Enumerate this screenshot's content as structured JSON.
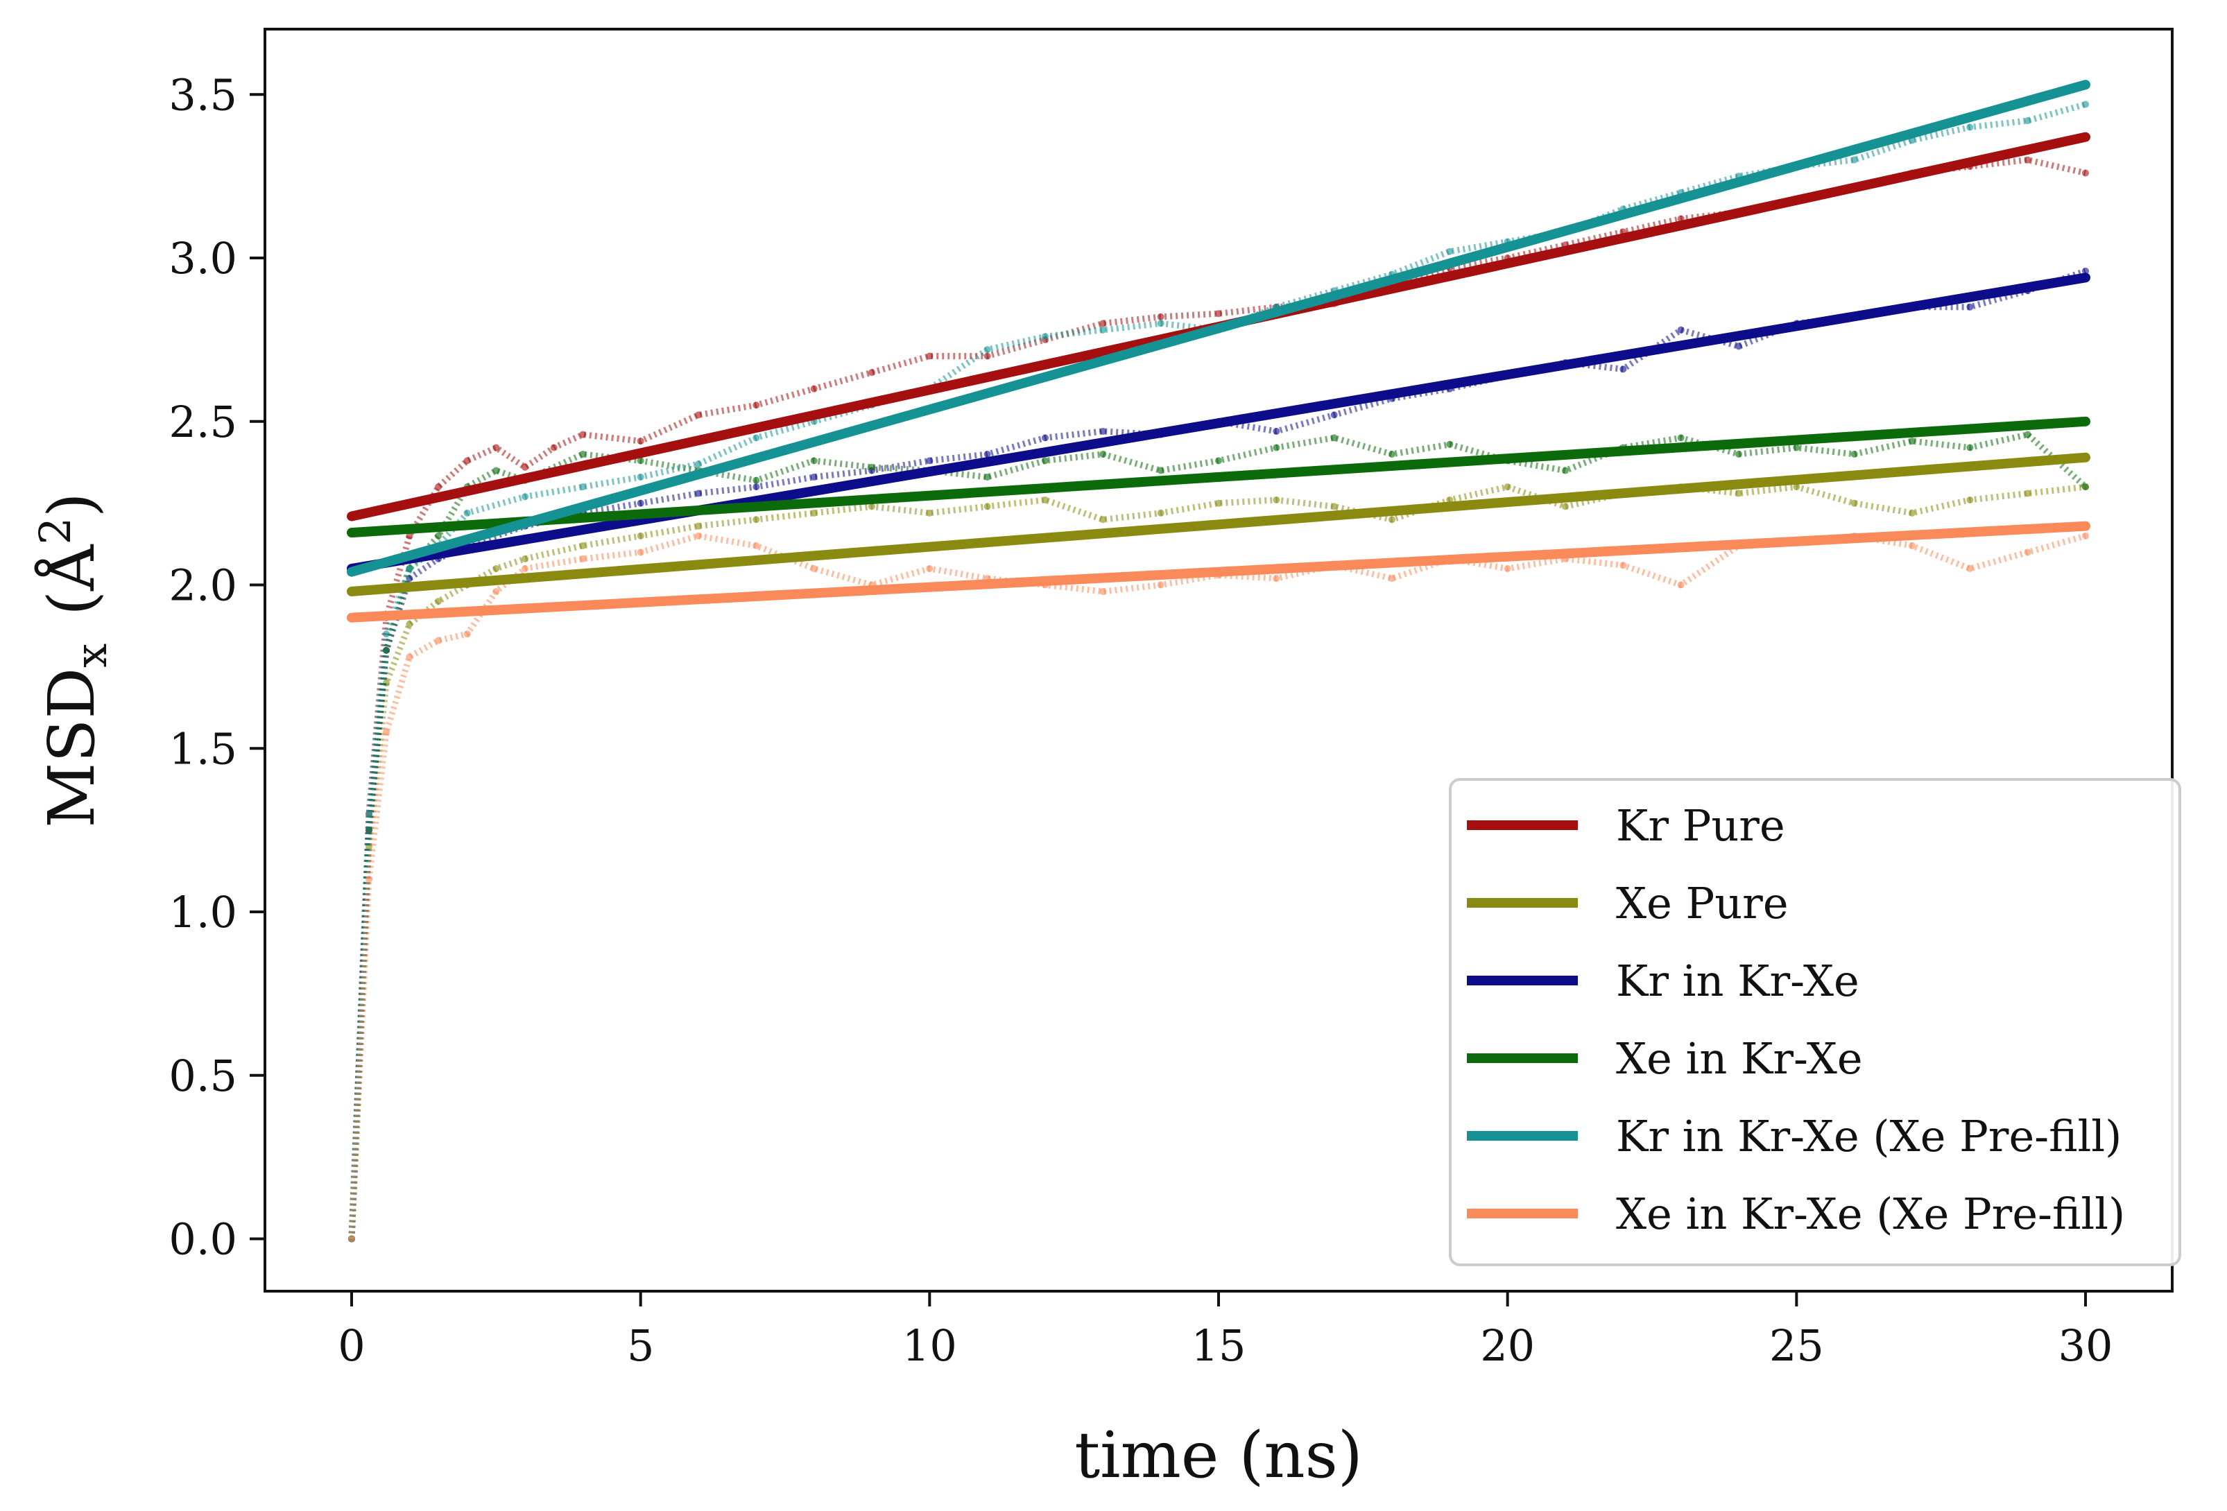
{
  "chart_data": {
    "type": "line",
    "title": "",
    "xlabel": "time (ns)",
    "ylabel": {
      "main": "MSD",
      "sub": "x",
      "unit_open": "(Å",
      "unit_sup": "2",
      "unit_close": ")"
    },
    "xlim": [
      -1.5,
      31.5
    ],
    "ylim": [
      -0.16,
      3.7
    ],
    "xticks": [
      0,
      5,
      10,
      15,
      20,
      25,
      30
    ],
    "yticks": [
      0.0,
      0.5,
      1.0,
      1.5,
      2.0,
      2.5,
      3.0,
      3.5
    ],
    "xtick_labels": [
      "0",
      "5",
      "10",
      "15",
      "20",
      "25",
      "30"
    ],
    "ytick_labels": [
      "0.0",
      "0.5",
      "1.0",
      "1.5",
      "2.0",
      "2.5",
      "3.0",
      "3.5"
    ],
    "grid": false,
    "legend_position": "bottom-right",
    "series": [
      {
        "name": "Kr Pure",
        "color": "#a50f0f",
        "fit": [
          [
            0,
            2.21
          ],
          [
            30,
            3.37
          ]
        ],
        "raw": [
          [
            0,
            0.0
          ],
          [
            0.3,
            1.3
          ],
          [
            0.6,
            1.9
          ],
          [
            1.0,
            2.15
          ],
          [
            1.5,
            2.3
          ],
          [
            2,
            2.38
          ],
          [
            2.5,
            2.42
          ],
          [
            3,
            2.36
          ],
          [
            3.5,
            2.42
          ],
          [
            4,
            2.46
          ],
          [
            5,
            2.44
          ],
          [
            6,
            2.52
          ],
          [
            7,
            2.55
          ],
          [
            8,
            2.6
          ],
          [
            9,
            2.65
          ],
          [
            10,
            2.7
          ],
          [
            11,
            2.7
          ],
          [
            12,
            2.75
          ],
          [
            13,
            2.8
          ],
          [
            14,
            2.82
          ],
          [
            15,
            2.83
          ],
          [
            16,
            2.85
          ],
          [
            17,
            2.86
          ],
          [
            18,
            2.92
          ],
          [
            19,
            2.97
          ],
          [
            20,
            3.0
          ],
          [
            21,
            3.04
          ],
          [
            22,
            3.08
          ],
          [
            23,
            3.12
          ],
          [
            24,
            3.14
          ],
          [
            25,
            3.18
          ],
          [
            26,
            3.22
          ],
          [
            27,
            3.26
          ],
          [
            28,
            3.28
          ],
          [
            29,
            3.3
          ],
          [
            30,
            3.26
          ]
        ]
      },
      {
        "name": "Xe Pure",
        "color": "#8b8a10",
        "fit": [
          [
            0,
            1.98
          ],
          [
            30,
            2.39
          ]
        ],
        "raw": [
          [
            0,
            0.0
          ],
          [
            0.3,
            1.2
          ],
          [
            0.6,
            1.7
          ],
          [
            1.0,
            1.88
          ],
          [
            1.5,
            1.95
          ],
          [
            2,
            2.0
          ],
          [
            2.5,
            2.05
          ],
          [
            3,
            2.08
          ],
          [
            4,
            2.12
          ],
          [
            5,
            2.15
          ],
          [
            6,
            2.18
          ],
          [
            7,
            2.2
          ],
          [
            8,
            2.22
          ],
          [
            9,
            2.24
          ],
          [
            10,
            2.22
          ],
          [
            11,
            2.24
          ],
          [
            12,
            2.26
          ],
          [
            13,
            2.2
          ],
          [
            14,
            2.22
          ],
          [
            15,
            2.25
          ],
          [
            16,
            2.26
          ],
          [
            17,
            2.24
          ],
          [
            18,
            2.2
          ],
          [
            19,
            2.26
          ],
          [
            20,
            2.3
          ],
          [
            21,
            2.24
          ],
          [
            22,
            2.28
          ],
          [
            23,
            2.3
          ],
          [
            24,
            2.28
          ],
          [
            25,
            2.3
          ],
          [
            26,
            2.25
          ],
          [
            27,
            2.22
          ],
          [
            28,
            2.26
          ],
          [
            29,
            2.28
          ],
          [
            30,
            2.3
          ]
        ]
      },
      {
        "name": "Kr in Kr-Xe",
        "color": "#0d0d8c",
        "fit": [
          [
            0,
            2.05
          ],
          [
            30,
            2.94
          ]
        ],
        "raw": [
          [
            0,
            0.0
          ],
          [
            0.3,
            1.25
          ],
          [
            0.6,
            1.8
          ],
          [
            1.0,
            2.02
          ],
          [
            1.5,
            2.08
          ],
          [
            2,
            2.12
          ],
          [
            3,
            2.18
          ],
          [
            4,
            2.22
          ],
          [
            5,
            2.25
          ],
          [
            6,
            2.28
          ],
          [
            7,
            2.3
          ],
          [
            8,
            2.33
          ],
          [
            9,
            2.35
          ],
          [
            10,
            2.38
          ],
          [
            11,
            2.4
          ],
          [
            12,
            2.45
          ],
          [
            13,
            2.47
          ],
          [
            14,
            2.46
          ],
          [
            15,
            2.5
          ],
          [
            16,
            2.47
          ],
          [
            17,
            2.52
          ],
          [
            18,
            2.57
          ],
          [
            19,
            2.6
          ],
          [
            20,
            2.64
          ],
          [
            21,
            2.68
          ],
          [
            22,
            2.66
          ],
          [
            23,
            2.78
          ],
          [
            24,
            2.73
          ],
          [
            25,
            2.8
          ],
          [
            26,
            2.82
          ],
          [
            27,
            2.85
          ],
          [
            28,
            2.85
          ],
          [
            29,
            2.9
          ],
          [
            30,
            2.96
          ]
        ]
      },
      {
        "name": "Xe in Kr-Xe",
        "color": "#0b6b0b",
        "fit": [
          [
            0,
            2.16
          ],
          [
            30,
            2.5
          ]
        ],
        "raw": [
          [
            0,
            0.0
          ],
          [
            0.3,
            1.25
          ],
          [
            0.6,
            1.8
          ],
          [
            1.0,
            2.05
          ],
          [
            1.5,
            2.15
          ],
          [
            2,
            2.3
          ],
          [
            2.5,
            2.35
          ],
          [
            3,
            2.32
          ],
          [
            4,
            2.4
          ],
          [
            5,
            2.38
          ],
          [
            6,
            2.35
          ],
          [
            7,
            2.32
          ],
          [
            8,
            2.38
          ],
          [
            9,
            2.36
          ],
          [
            10,
            2.35
          ],
          [
            11,
            2.33
          ],
          [
            12,
            2.38
          ],
          [
            13,
            2.4
          ],
          [
            14,
            2.35
          ],
          [
            15,
            2.38
          ],
          [
            16,
            2.42
          ],
          [
            17,
            2.45
          ],
          [
            18,
            2.4
          ],
          [
            19,
            2.43
          ],
          [
            20,
            2.38
          ],
          [
            21,
            2.35
          ],
          [
            22,
            2.42
          ],
          [
            23,
            2.45
          ],
          [
            24,
            2.4
          ],
          [
            25,
            2.42
          ],
          [
            26,
            2.4
          ],
          [
            27,
            2.44
          ],
          [
            28,
            2.42
          ],
          [
            29,
            2.46
          ],
          [
            30,
            2.3
          ]
        ]
      },
      {
        "name": "Kr in Kr-Xe (Xe Pre-fill)",
        "color": "#159294",
        "fit": [
          [
            0,
            2.04
          ],
          [
            30,
            3.53
          ]
        ],
        "raw": [
          [
            0,
            0.0
          ],
          [
            0.3,
            1.3
          ],
          [
            0.6,
            1.85
          ],
          [
            1.0,
            2.05
          ],
          [
            1.5,
            2.12
          ],
          [
            2,
            2.22
          ],
          [
            3,
            2.27
          ],
          [
            4,
            2.3
          ],
          [
            5,
            2.33
          ],
          [
            6,
            2.37
          ],
          [
            7,
            2.45
          ],
          [
            8,
            2.5
          ],
          [
            9,
            2.55
          ],
          [
            10,
            2.6
          ],
          [
            11,
            2.72
          ],
          [
            12,
            2.76
          ],
          [
            13,
            2.78
          ],
          [
            14,
            2.8
          ],
          [
            15,
            2.78
          ],
          [
            16,
            2.85
          ],
          [
            17,
            2.9
          ],
          [
            18,
            2.95
          ],
          [
            19,
            3.02
          ],
          [
            20,
            3.05
          ],
          [
            21,
            3.08
          ],
          [
            22,
            3.15
          ],
          [
            23,
            3.2
          ],
          [
            24,
            3.25
          ],
          [
            25,
            3.28
          ],
          [
            26,
            3.3
          ],
          [
            27,
            3.36
          ],
          [
            28,
            3.4
          ],
          [
            29,
            3.42
          ],
          [
            30,
            3.47
          ]
        ]
      },
      {
        "name": "Xe in Kr-Xe (Xe Pre-fill)",
        "color": "#fa8a5a",
        "fit": [
          [
            0,
            1.9
          ],
          [
            30,
            2.18
          ]
        ],
        "raw": [
          [
            0,
            0.0
          ],
          [
            0.3,
            1.1
          ],
          [
            0.6,
            1.55
          ],
          [
            1.0,
            1.78
          ],
          [
            1.5,
            1.83
          ],
          [
            2,
            1.85
          ],
          [
            2.5,
            1.98
          ],
          [
            3,
            2.05
          ],
          [
            4,
            2.08
          ],
          [
            5,
            2.1
          ],
          [
            6,
            2.15
          ],
          [
            7,
            2.12
          ],
          [
            8,
            2.05
          ],
          [
            9,
            2.0
          ],
          [
            10,
            2.05
          ],
          [
            11,
            2.02
          ],
          [
            12,
            2.0
          ],
          [
            13,
            1.98
          ],
          [
            14,
            2.0
          ],
          [
            15,
            2.03
          ],
          [
            16,
            2.02
          ],
          [
            17,
            2.06
          ],
          [
            18,
            2.02
          ],
          [
            19,
            2.08
          ],
          [
            20,
            2.05
          ],
          [
            21,
            2.08
          ],
          [
            22,
            2.06
          ],
          [
            23,
            2.0
          ],
          [
            24,
            2.12
          ],
          [
            25,
            2.13
          ],
          [
            26,
            2.15
          ],
          [
            27,
            2.12
          ],
          [
            28,
            2.05
          ],
          [
            29,
            2.1
          ],
          [
            30,
            2.15
          ]
        ]
      }
    ]
  }
}
